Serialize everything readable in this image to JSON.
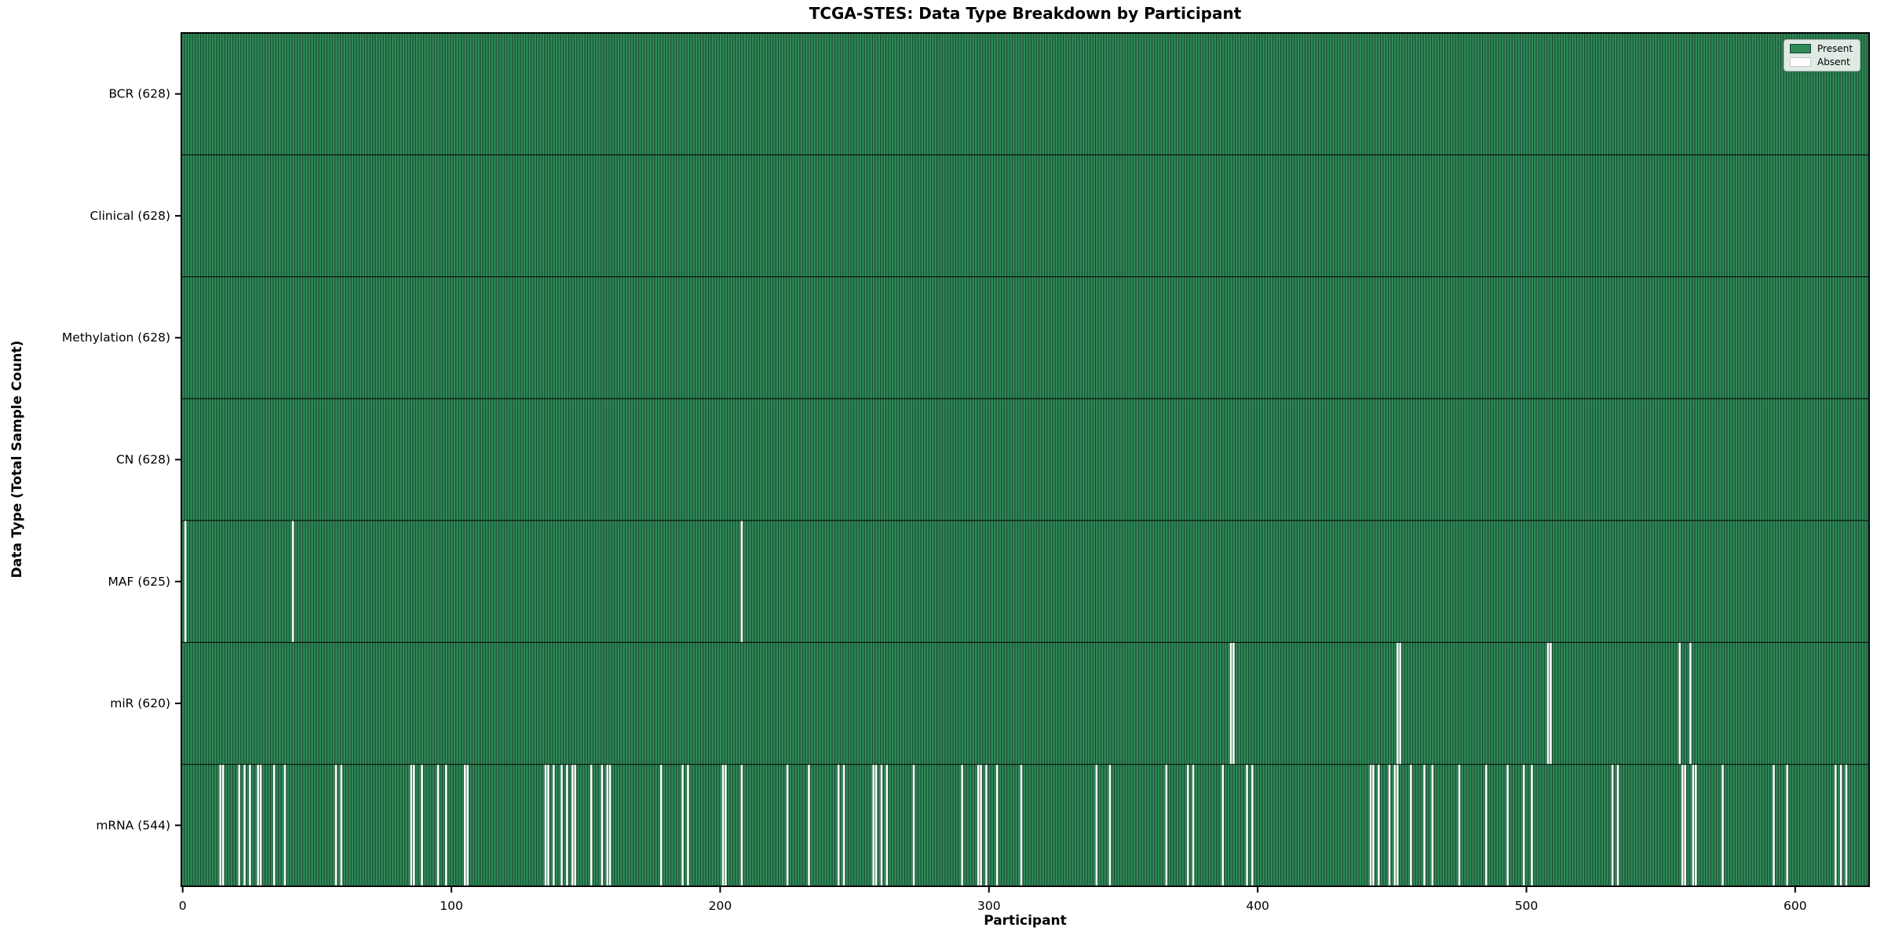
{
  "chart_data": {
    "type": "heatmap",
    "title": "TCGA-STES: Data Type Breakdown by Participant",
    "xlabel": "Participant",
    "ylabel": "Data Type (Total Sample Count)",
    "total_participants": 628,
    "xlim": [
      -0.5,
      627.5
    ],
    "x_ticks": [
      0,
      100,
      200,
      300,
      400,
      500,
      600
    ],
    "grid": false,
    "legend": {
      "position": "upper right",
      "entries": [
        {
          "label": "Present",
          "color": "#2e8b57"
        },
        {
          "label": "Absent",
          "color": "#ffffff"
        }
      ]
    },
    "colors": {
      "present": "#2e8b57",
      "bar_edge": "#1b4532",
      "absent": "#ffffff",
      "separator": "#000000",
      "spine": "#000000"
    },
    "rows": [
      {
        "name": "BCR",
        "label": "BCR (628)",
        "present_count": 628,
        "absent_participants": []
      },
      {
        "name": "Clinical",
        "label": "Clinical (628)",
        "present_count": 628,
        "absent_participants": []
      },
      {
        "name": "Methylation",
        "label": "Methylation (628)",
        "present_count": 628,
        "absent_participants": []
      },
      {
        "name": "CN",
        "label": "CN (628)",
        "present_count": 628,
        "absent_participants": []
      },
      {
        "name": "MAF",
        "label": "MAF (625)",
        "present_count": 625,
        "absent_participants": [
          1,
          41,
          208
        ]
      },
      {
        "name": "miR",
        "label": "miR (620)",
        "present_count": 620,
        "absent_participants": [
          390,
          391,
          452,
          453,
          508,
          509,
          557,
          561
        ]
      },
      {
        "name": "mRNA",
        "label": "mRNA (544)",
        "present_count": 544,
        "absent_participants": [
          14,
          15,
          21,
          23,
          25,
          28,
          29,
          34,
          38,
          57,
          59,
          85,
          86,
          89,
          95,
          98,
          105,
          106,
          135,
          136,
          138,
          141,
          143,
          145,
          146,
          152,
          156,
          158,
          159,
          178,
          186,
          188,
          201,
          202,
          208,
          225,
          233,
          244,
          246,
          257,
          258,
          260,
          262,
          272,
          290,
          296,
          297,
          299,
          303,
          312,
          340,
          345,
          366,
          374,
          376,
          387,
          396,
          398,
          442,
          443,
          445,
          449,
          451,
          452,
          457,
          462,
          465,
          475,
          485,
          493,
          499,
          502,
          532,
          534,
          558,
          559,
          562,
          563,
          573,
          592,
          597,
          615,
          617,
          619
        ]
      }
    ]
  }
}
